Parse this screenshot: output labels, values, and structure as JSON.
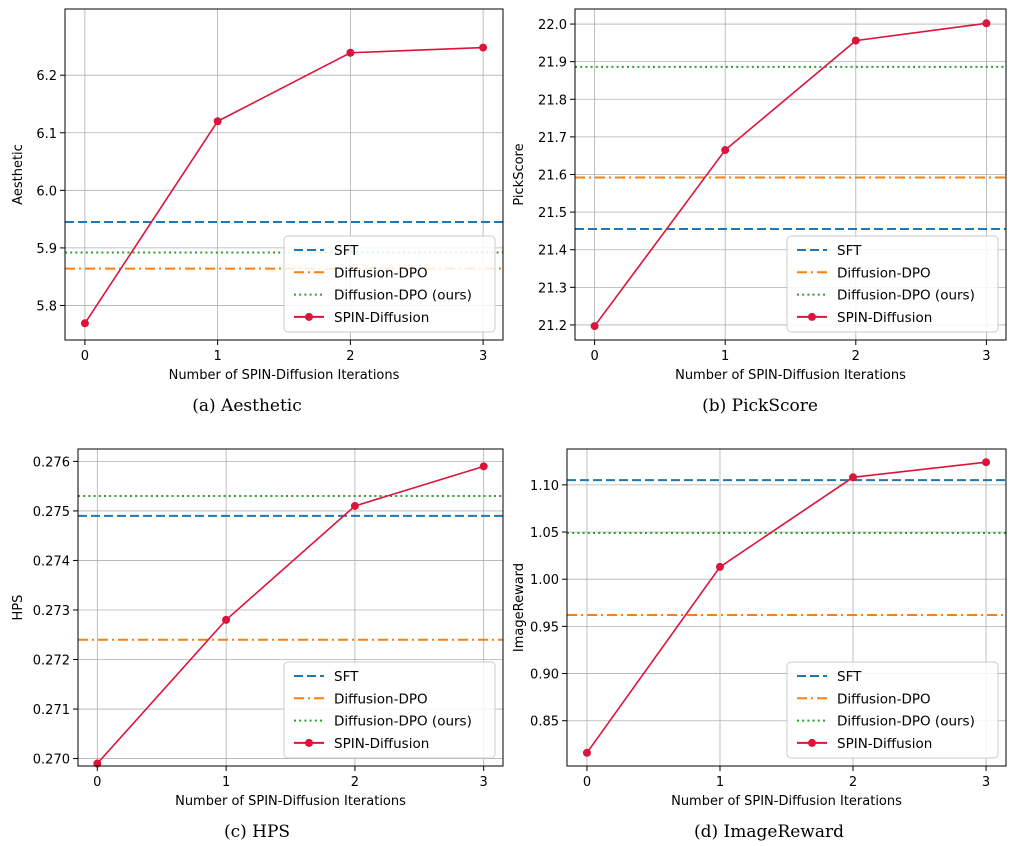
{
  "chart_data": [
    {
      "type": "line",
      "caption": "(a)  Aesthetic",
      "ylabel": "Aesthetic",
      "xlabel": "Number of SPIN-Diffusion Iterations",
      "xlim": [
        -0.15,
        3.15
      ],
      "ylim": [
        5.74,
        6.315
      ],
      "xticks": [
        0,
        1,
        2,
        3
      ],
      "yticks": [
        5.8,
        5.9,
        6.0,
        6.1,
        6.2
      ],
      "ytick_labels": [
        "5.8",
        "5.9",
        "6.0",
        "6.1",
        "6.2"
      ],
      "grid": true,
      "legend_position": "lower-right",
      "baselines": [
        {
          "name": "SFT",
          "value": 5.945,
          "color": "#1f77b4",
          "style": "dashed"
        },
        {
          "name": "Diffusion-DPO",
          "value": 5.864,
          "color": "#ff7f0e",
          "style": "dashdot"
        },
        {
          "name": "Diffusion-DPO (ours)",
          "value": 5.892,
          "color": "#2ca02c",
          "style": "dotted"
        }
      ],
      "series": [
        {
          "name": "SPIN-Diffusion",
          "x": [
            0,
            1,
            2,
            3
          ],
          "values": [
            5.769,
            6.12,
            6.239,
            6.248
          ],
          "color": "#dc143c"
        }
      ]
    },
    {
      "type": "line",
      "caption": "(b)  PickScore",
      "ylabel": "PickScore",
      "xlabel": "Number of SPIN-Diffusion Iterations",
      "xlim": [
        -0.15,
        3.15
      ],
      "ylim": [
        21.16,
        22.04
      ],
      "xticks": [
        0,
        1,
        2,
        3
      ],
      "yticks": [
        21.2,
        21.3,
        21.4,
        21.5,
        21.6,
        21.7,
        21.8,
        21.9,
        22.0
      ],
      "ytick_labels": [
        "21.2",
        "21.3",
        "21.4",
        "21.5",
        "21.6",
        "21.7",
        "21.8",
        "21.9",
        "22.0"
      ],
      "grid": true,
      "legend_position": "lower-right",
      "baselines": [
        {
          "name": "SFT",
          "value": 21.455,
          "color": "#1f77b4",
          "style": "dashed"
        },
        {
          "name": "Diffusion-DPO",
          "value": 21.592,
          "color": "#ff7f0e",
          "style": "dashdot"
        },
        {
          "name": "Diffusion-DPO (ours)",
          "value": 21.886,
          "color": "#2ca02c",
          "style": "dotted"
        }
      ],
      "series": [
        {
          "name": "SPIN-Diffusion",
          "x": [
            0,
            1,
            2,
            3
          ],
          "values": [
            21.197,
            21.665,
            21.956,
            22.002
          ],
          "color": "#dc143c"
        }
      ]
    },
    {
      "type": "line",
      "caption": "(c)  HPS",
      "ylabel": "HPS",
      "xlabel": "Number of SPIN-Diffusion Iterations",
      "xlim": [
        -0.15,
        3.15
      ],
      "ylim": [
        0.26985,
        0.27625
      ],
      "xticks": [
        0,
        1,
        2,
        3
      ],
      "yticks": [
        0.27,
        0.271,
        0.272,
        0.273,
        0.274,
        0.275,
        0.276
      ],
      "ytick_labels": [
        "0.270",
        "0.271",
        "0.272",
        "0.273",
        "0.274",
        "0.275",
        "0.276"
      ],
      "grid": true,
      "legend_position": "lower-right",
      "baselines": [
        {
          "name": "SFT",
          "value": 0.2749,
          "color": "#1f77b4",
          "style": "dashed"
        },
        {
          "name": "Diffusion-DPO",
          "value": 0.2724,
          "color": "#ff7f0e",
          "style": "dashdot"
        },
        {
          "name": "Diffusion-DPO (ours)",
          "value": 0.2753,
          "color": "#2ca02c",
          "style": "dotted"
        }
      ],
      "series": [
        {
          "name": "SPIN-Diffusion",
          "x": [
            0,
            1,
            2,
            3
          ],
          "values": [
            0.2699,
            0.2728,
            0.2751,
            0.2759
          ],
          "color": "#dc143c"
        }
      ]
    },
    {
      "type": "line",
      "caption": "(d)  ImageReward",
      "ylabel": "ImageReward",
      "xlabel": "Number of SPIN-Diffusion Iterations",
      "xlim": [
        -0.15,
        3.15
      ],
      "ylim": [
        0.802,
        1.138
      ],
      "xticks": [
        0,
        1,
        2,
        3
      ],
      "yticks": [
        0.85,
        0.9,
        0.95,
        1.0,
        1.05,
        1.1
      ],
      "ytick_labels": [
        "0.85",
        "0.90",
        "0.95",
        "1.00",
        "1.05",
        "1.10"
      ],
      "grid": true,
      "legend_position": "lower-right",
      "baselines": [
        {
          "name": "SFT",
          "value": 1.105,
          "color": "#1f77b4",
          "style": "dashed"
        },
        {
          "name": "Diffusion-DPO",
          "value": 0.962,
          "color": "#ff7f0e",
          "style": "dashdot"
        },
        {
          "name": "Diffusion-DPO (ours)",
          "value": 1.049,
          "color": "#2ca02c",
          "style": "dotted"
        }
      ],
      "series": [
        {
          "name": "SPIN-Diffusion",
          "x": [
            0,
            1,
            2,
            3
          ],
          "values": [
            0.816,
            1.013,
            1.108,
            1.124
          ],
          "color": "#dc143c"
        }
      ]
    }
  ]
}
